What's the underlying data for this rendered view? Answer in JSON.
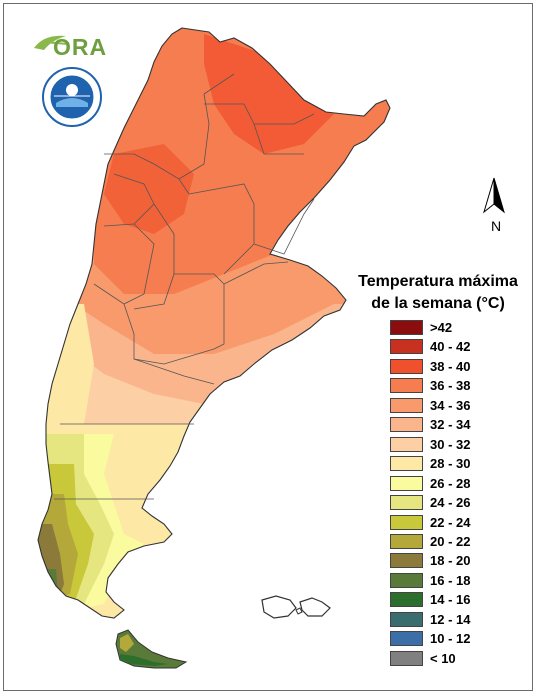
{
  "logo": {
    "text": "ORA",
    "leaf_color": "#8ab84a",
    "text_color": "#6e9f3f"
  },
  "seal": {
    "ring_text": "SERVICIO METEOROLÓGICO NACIONAL",
    "bottom_text": "ARGENTINA",
    "ring_color": "#1f63ae"
  },
  "compass": {
    "label": "N"
  },
  "legend": {
    "title_line1": "Temperatura máxima",
    "title_line2": "de la semana (°C)",
    "items": [
      {
        "label": ">42",
        "color": "#8b0d0d"
      },
      {
        "label": "40 - 42",
        "color": "#c8301f"
      },
      {
        "label": "38 - 40",
        "color": "#f0502c"
      },
      {
        "label": "36 - 38",
        "color": "#f57d4f"
      },
      {
        "label": "34 - 36",
        "color": "#f89a6c"
      },
      {
        "label": "32 - 34",
        "color": "#fab58c"
      },
      {
        "label": "30 - 32",
        "color": "#fcd0a4"
      },
      {
        "label": "28 - 30",
        "color": "#fde8a6"
      },
      {
        "label": "26 - 28",
        "color": "#fafa9e"
      },
      {
        "label": "24 - 26",
        "color": "#e6e680"
      },
      {
        "label": "22 - 24",
        "color": "#c8c83a"
      },
      {
        "label": "20 - 22",
        "color": "#b4a83a"
      },
      {
        "label": "18 - 20",
        "color": "#8c7a3a"
      },
      {
        "label": "16 - 18",
        "color": "#5a7a3a"
      },
      {
        "label": "14 - 16",
        "color": "#2c6e2c"
      },
      {
        "label": "12 - 14",
        "color": "#3a6e6e"
      },
      {
        "label": "10 - 12",
        "color": "#3c6ea8"
      },
      {
        "label": "< 10",
        "color": "#808080"
      }
    ]
  }
}
